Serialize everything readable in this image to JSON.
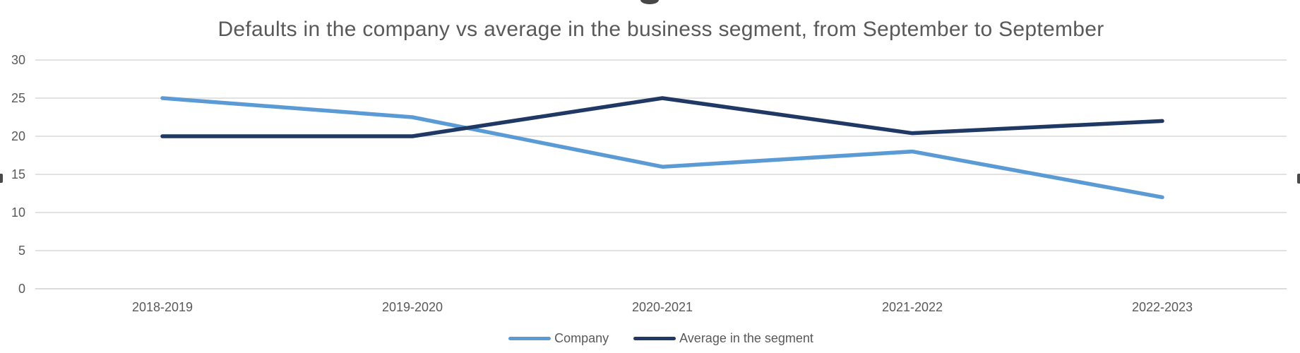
{
  "chart_data": {
    "type": "line",
    "title": "Defaults in the company vs average in the business segment, from September to September",
    "categories": [
      "2018-2019",
      "2019-2020",
      "2020-2021",
      "2021-2022",
      "2022-2023"
    ],
    "series": [
      {
        "name": "Company",
        "color": "#5B9BD5",
        "values": [
          25,
          22.5,
          16,
          18,
          12
        ]
      },
      {
        "name": "Average in the segment",
        "color": "#1F3864",
        "values": [
          20,
          20,
          25,
          20.4,
          22
        ]
      }
    ],
    "xlabel": "",
    "ylabel": "",
    "ylim": [
      0,
      30
    ],
    "y_ticks": [
      30,
      25,
      20,
      15,
      10,
      5,
      0
    ],
    "grid": "horizontal",
    "legend_position": "bottom",
    "colors": {
      "title_text": "#595959",
      "axis_text": "#595959",
      "gridline": "#D9D9D9",
      "axis_line": "#CFCFCF"
    }
  }
}
